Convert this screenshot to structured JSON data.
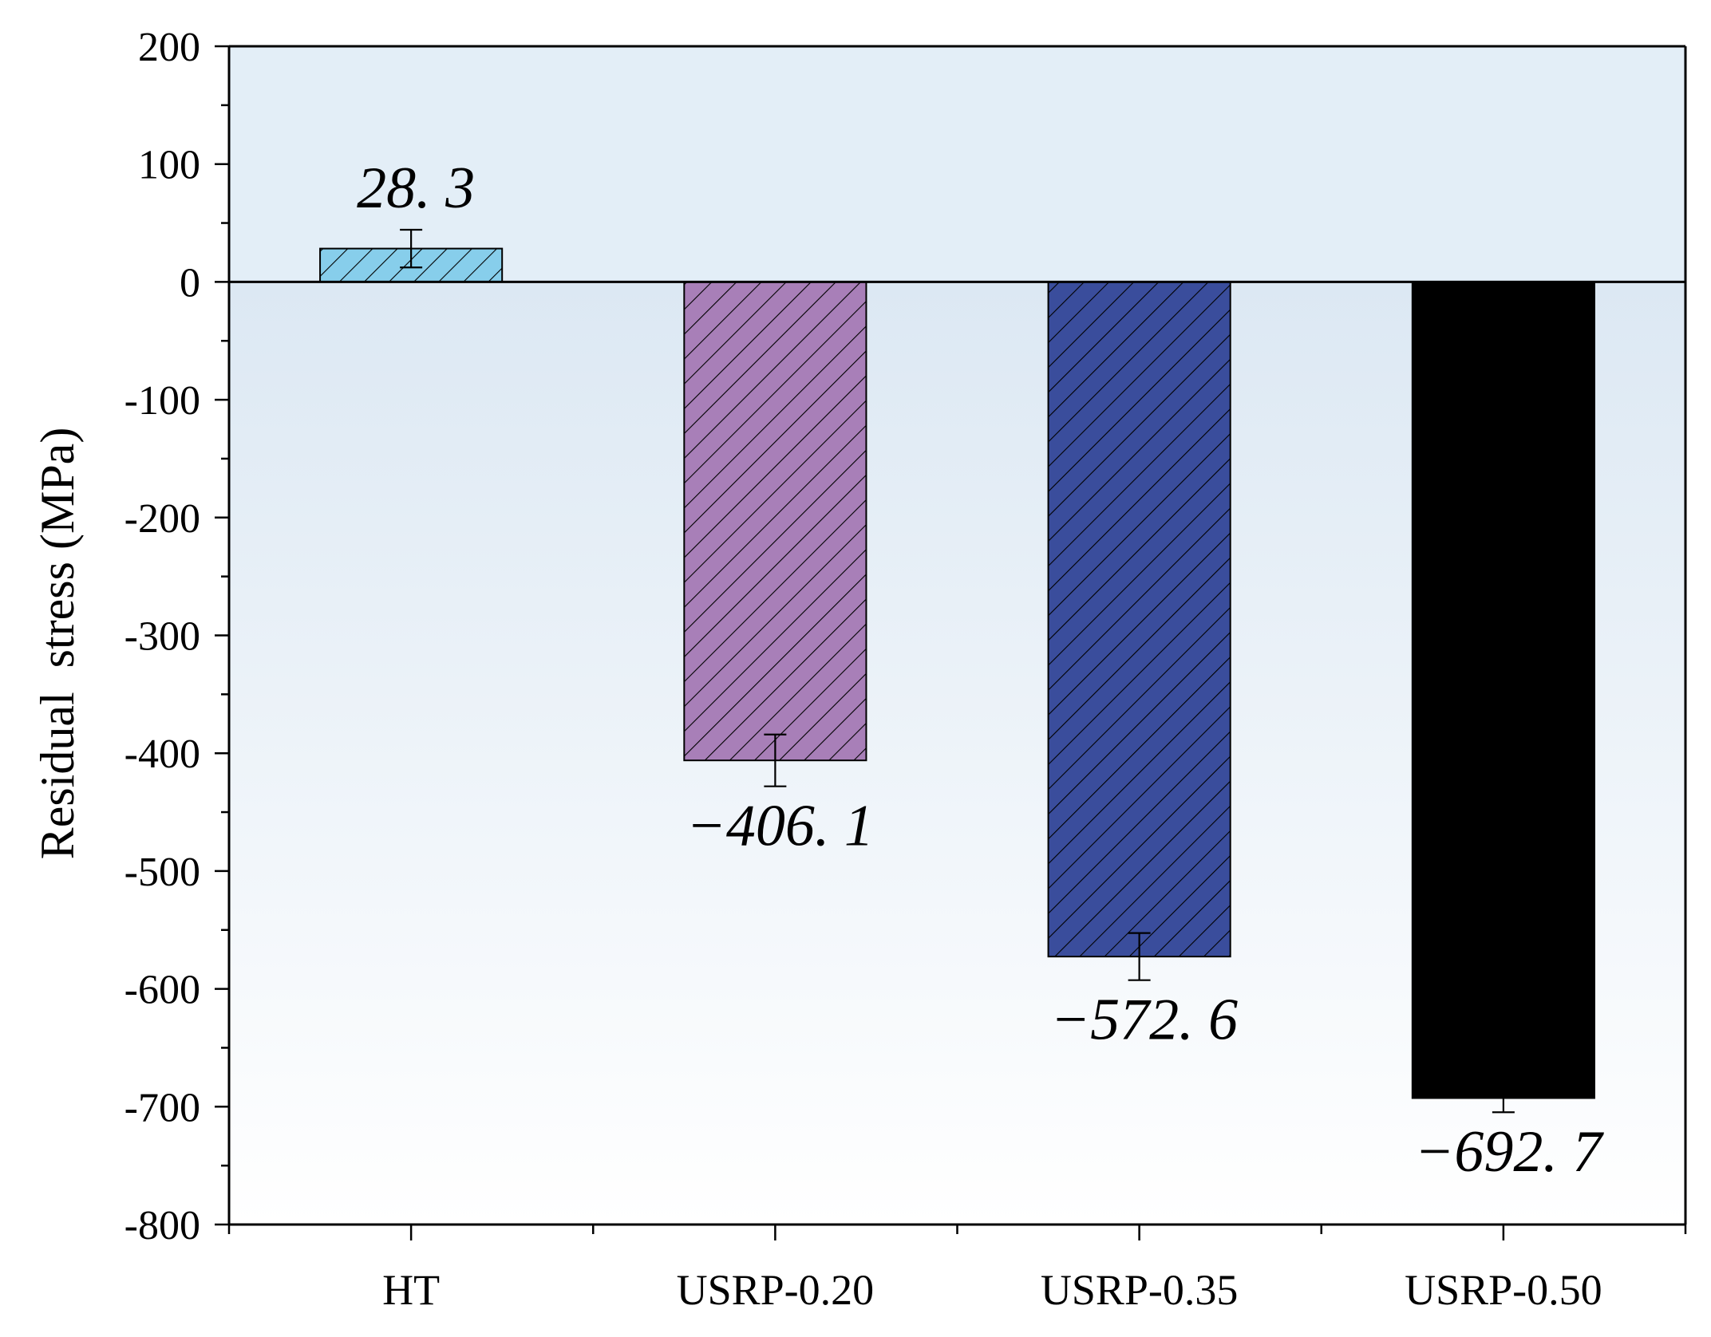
{
  "chart_data": {
    "type": "bar",
    "title": "",
    "xlabel": "",
    "ylabel": "Residual  stress (MPa)",
    "ylim": [
      -800,
      200
    ],
    "ytick_step": 100,
    "yminor_step": 50,
    "grid": false,
    "categories": [
      "HT",
      "USRP-0.20",
      "USRP-0.35",
      "USRP-0.50"
    ],
    "values": [
      28.3,
      -406.1,
      -572.6,
      -692.7
    ],
    "errors": [
      16,
      22,
      20,
      12
    ],
    "data_labels": [
      "28. 3",
      "−406. 1",
      "−572. 6",
      "−692. 7"
    ],
    "colors": [
      "#87CEEB",
      "#A87FB8",
      "#3A4D9C",
      "#000000"
    ],
    "hatched": [
      true,
      true,
      true,
      false
    ],
    "background": {
      "positive_region": "#E3EEF7",
      "negative_top": "#DCE8F3",
      "negative_bottom": "#FFFFFF"
    }
  }
}
